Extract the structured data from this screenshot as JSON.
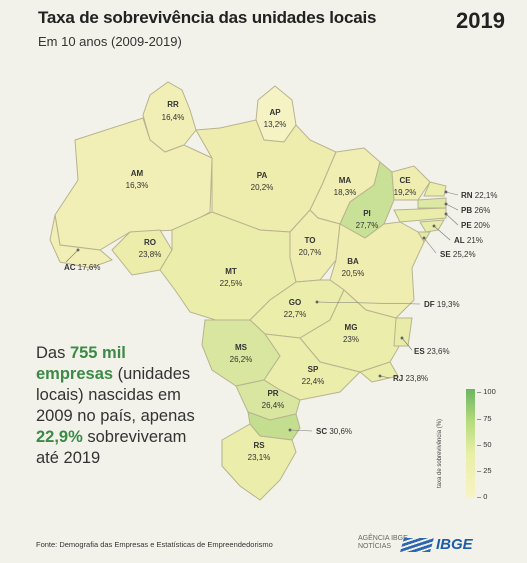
{
  "header": {
    "title": "Taxa de sobrevivência das unidades locais",
    "subtitle": "Em 10 anos (2009-2019)",
    "year": "2019"
  },
  "states": [
    {
      "code": "RR",
      "value": "16,4%"
    },
    {
      "code": "AP",
      "value": "13,2%"
    },
    {
      "code": "AM",
      "value": "16,3%"
    },
    {
      "code": "PA",
      "value": "20,2%"
    },
    {
      "code": "MA",
      "value": "18,3%"
    },
    {
      "code": "CE",
      "value": "19,2%"
    },
    {
      "code": "PI",
      "value": "27,7%"
    },
    {
      "code": "RO",
      "value": "23,8%"
    },
    {
      "code": "TO",
      "value": "20,7%"
    },
    {
      "code": "BA",
      "value": "20,5%"
    },
    {
      "code": "MT",
      "value": "22,5%"
    },
    {
      "code": "GO",
      "value": "22,7%"
    },
    {
      "code": "MG",
      "value": "23%"
    },
    {
      "code": "MS",
      "value": "26,2%"
    },
    {
      "code": "SP",
      "value": "22,4%"
    },
    {
      "code": "PR",
      "value": "26,4%"
    },
    {
      "code": "RS",
      "value": "23,1%"
    }
  ],
  "callouts": [
    {
      "code": "RN",
      "value": "22,1%"
    },
    {
      "code": "PB",
      "value": "26%"
    },
    {
      "code": "PE",
      "value": "20%"
    },
    {
      "code": "AL",
      "value": "21%"
    },
    {
      "code": "SE",
      "value": "25,2%"
    },
    {
      "code": "AC",
      "value": "17,6%"
    },
    {
      "code": "DF",
      "value": "19,3%"
    },
    {
      "code": "ES",
      "value": "23,6%"
    },
    {
      "code": "RJ",
      "value": "23,8%"
    },
    {
      "code": "SC",
      "value": "30,6%"
    }
  ],
  "lead": {
    "p1": "Das ",
    "h1": "755 mil",
    "h2": "empresas",
    "p2": " (unidades locais) nascidas em 2009 no país, apenas ",
    "h3": "22,9%",
    "p3": " sobreviveram até 2019"
  },
  "legend": {
    "title": "taxa de sobrevivência (%)",
    "ticks": [
      "100",
      "75",
      "50",
      "25",
      "0"
    ],
    "min": 0,
    "max": 100
  },
  "footer": {
    "source": "Fonte: Demografia das Empresas e Estatísticas de Empreendedorismo",
    "agencia_1": "AGÊNCIA IBGE",
    "agencia_2": "NOTÍCIAS",
    "logo": "IBGE"
  }
}
